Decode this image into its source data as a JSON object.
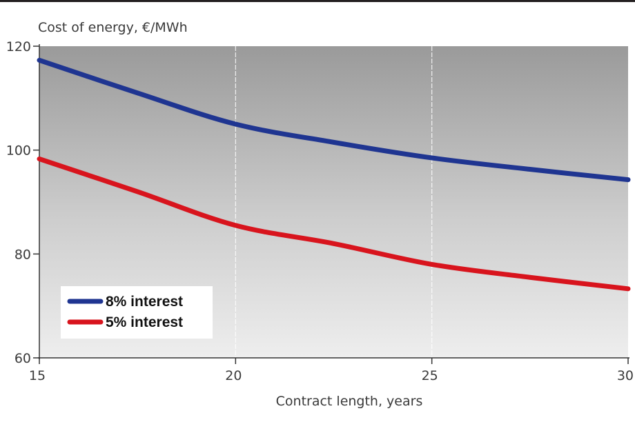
{
  "chart_data": {
    "type": "line",
    "ylabel": "Cost of energy, €/MWh",
    "xlabel": "Contract length, years",
    "xlim": [
      15,
      30
    ],
    "ylim": [
      60,
      120
    ],
    "x_ticks": [
      "15",
      "20",
      "25",
      "30"
    ],
    "y_ticks": [
      "60",
      "80",
      "100",
      "120"
    ],
    "grid": "vertical lines at x = 20 and x = 25",
    "legend_position": "lower-left",
    "background": "vertical gradient, dark grey at top to light grey at bottom",
    "series": [
      {
        "name": "8% interest",
        "color": "#1f3591",
        "x": [
          15,
          17.5,
          20,
          22.5,
          25,
          27.5,
          30
        ],
        "y": [
          117.3,
          111.0,
          105.0,
          101.5,
          98.5,
          96.3,
          94.3
        ]
      },
      {
        "name": "5% interest",
        "color": "#d8141d",
        "x": [
          15,
          17.5,
          20,
          22.5,
          25,
          27.5,
          30
        ],
        "y": [
          98.3,
          92.0,
          85.5,
          82.0,
          78.0,
          75.5,
          73.3
        ]
      }
    ]
  }
}
